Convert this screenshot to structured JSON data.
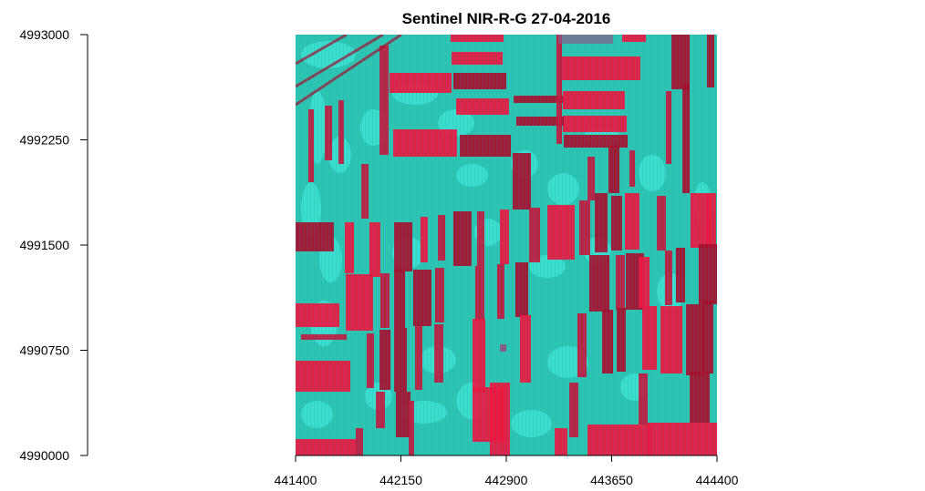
{
  "title": "Sentinel NIR-R-G 27-04-2016",
  "chart_data": {
    "type": "raster-map",
    "title": "Sentinel NIR-R-G 27-04-2016",
    "xlabel": "",
    "ylabel": "",
    "xlim": [
      441400,
      444400
    ],
    "ylim": [
      4990000,
      4993000
    ],
    "x_ticks": [
      "441400",
      "442150",
      "442900",
      "443650",
      "444400"
    ],
    "y_ticks": [
      "4990000",
      "4990750",
      "4991500",
      "4992250",
      "4993000"
    ],
    "grid": false,
    "colors": {
      "background": "#2ec4b4",
      "light": "#46f2e4",
      "red_bright": "#f0153f",
      "red_dark": "#a80d2c",
      "field_mid": "#c5173e",
      "purple": "#8a5a86"
    }
  }
}
